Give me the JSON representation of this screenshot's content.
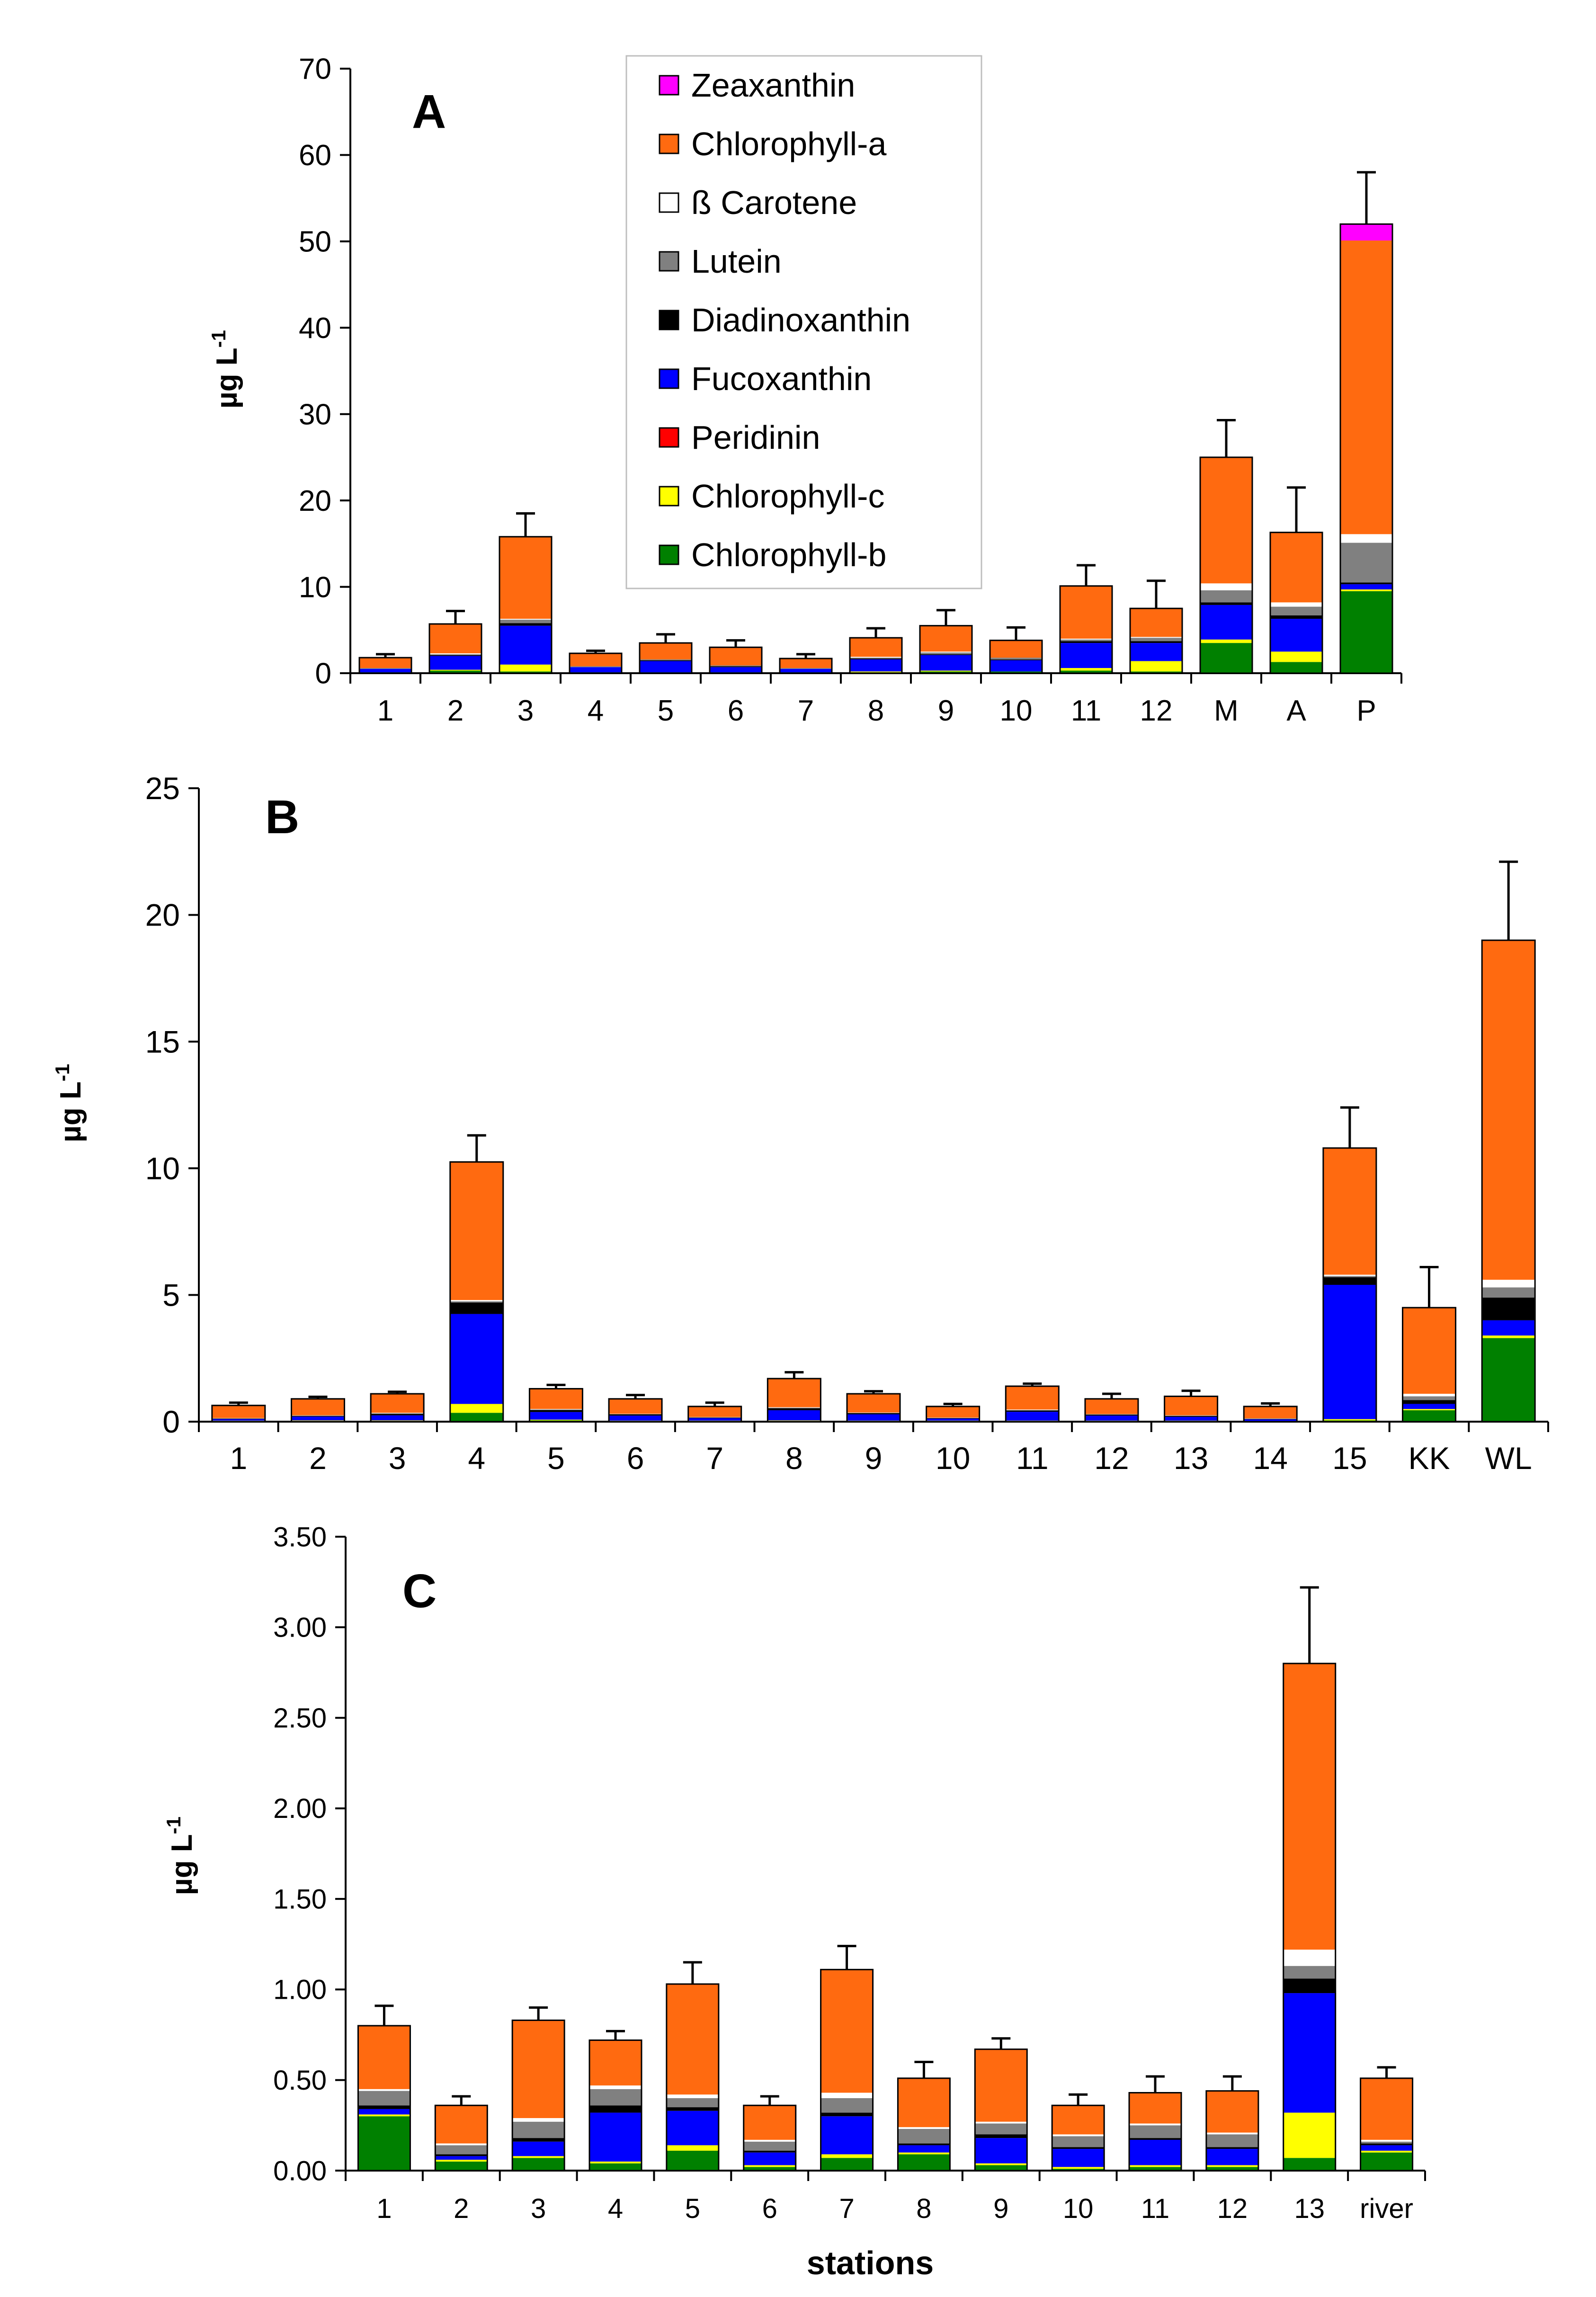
{
  "legend": [
    {
      "key": "zea",
      "name": "Zeaxanthin",
      "color": "#ff00ff"
    },
    {
      "key": "chla",
      "name": "Chlorophyll-a",
      "color": "#ff6a10"
    },
    {
      "key": "bcar",
      "name": "ß Carotene",
      "color": "#ffffff"
    },
    {
      "key": "lut",
      "name": "Lutein",
      "color": "#808080"
    },
    {
      "key": "dia",
      "name": "Diadinoxanthin",
      "color": "#000000"
    },
    {
      "key": "fuco",
      "name": "Fucoxanthin",
      "color": "#0000ff"
    },
    {
      "key": "peri",
      "name": "Peridinin",
      "color": "#ff0000"
    },
    {
      "key": "chlc",
      "name": "Chlorophyll-c",
      "color": "#ffff00"
    },
    {
      "key": "chlb",
      "name": "Chlorophyll-b",
      "color": "#008000"
    }
  ],
  "x_title": "stations",
  "chart_data": [
    {
      "type": "bar",
      "stacked": true,
      "panel_label": "A",
      "ylabel_main": "µg L",
      "ylabel_sup": "-1",
      "ylim": [
        0,
        70
      ],
      "yticks": [
        "0",
        "10",
        "20",
        "30",
        "40",
        "50",
        "60",
        "70"
      ],
      "categories": [
        "1",
        "2",
        "3",
        "4",
        "5",
        "6",
        "7",
        "8",
        "9",
        "10",
        "11",
        "12",
        "M",
        "A",
        "P"
      ],
      "series": [
        {
          "key": "chlb",
          "name": "Chlorophyll-b",
          "values": [
            0.1,
            0.3,
            0.2,
            0.1,
            0.1,
            0.1,
            0.1,
            0.1,
            0.2,
            0.2,
            0.3,
            0.2,
            3.5,
            1.3,
            9.5
          ]
        },
        {
          "key": "chlc",
          "name": "Chlorophyll-c",
          "values": [
            0,
            0.1,
            0.8,
            0,
            0,
            0,
            0,
            0.1,
            0.1,
            0,
            0.3,
            1.2,
            0.4,
            1.2,
            0.2
          ]
        },
        {
          "key": "peri",
          "name": "Peridinin",
          "values": [
            0,
            0,
            0,
            0,
            0,
            0,
            0,
            0,
            0,
            0,
            0,
            0,
            0,
            0,
            0
          ]
        },
        {
          "key": "fuco",
          "name": "Fucoxanthin",
          "values": [
            0.4,
            1.6,
            4.5,
            0.6,
            1.3,
            0.6,
            0.4,
            1.4,
            1.8,
            1.3,
            2.9,
            2.1,
            4.0,
            3.8,
            0.6
          ]
        },
        {
          "key": "dia",
          "name": "Diadinoxanthin",
          "values": [
            0,
            0.1,
            0.3,
            0,
            0.1,
            0.1,
            0,
            0.1,
            0.1,
            0.1,
            0.2,
            0.2,
            0.3,
            0.4,
            0.2
          ]
        },
        {
          "key": "lut",
          "name": "Lutein",
          "values": [
            0.1,
            0.1,
            0.4,
            0.1,
            0.1,
            0.1,
            0.1,
            0.1,
            0.2,
            0.2,
            0.2,
            0.4,
            1.4,
            1.0,
            4.6
          ]
        },
        {
          "key": "bcar",
          "name": "ß Carotene",
          "values": [
            0,
            0.1,
            0.1,
            0,
            0,
            0,
            0,
            0.1,
            0.1,
            0,
            0.1,
            0.1,
            0.8,
            0.5,
            1.0
          ]
        },
        {
          "key": "chla",
          "name": "Chlorophyll-a",
          "values": [
            1.2,
            3.4,
            9.5,
            1.5,
            1.9,
            2.1,
            1.1,
            2.2,
            3.0,
            2.0,
            6.1,
            3.3,
            14.6,
            8.1,
            34.0
          ]
        },
        {
          "key": "zea",
          "name": "Zeaxanthin",
          "values": [
            0,
            0,
            0,
            0,
            0,
            0,
            0,
            0,
            0,
            0,
            0,
            0,
            0,
            0,
            1.9
          ]
        }
      ],
      "error_tops": [
        2.2,
        7.2,
        18.5,
        2.6,
        4.5,
        3.8,
        2.2,
        5.2,
        7.3,
        5.3,
        12.5,
        10.7,
        29.3,
        21.5,
        58.0
      ]
    },
    {
      "type": "bar",
      "stacked": true,
      "panel_label": "B",
      "ylabel_main": "µg L",
      "ylabel_sup": "-1",
      "ylim": [
        0,
        25
      ],
      "yticks": [
        "0",
        "5",
        "10",
        "15",
        "20",
        "25"
      ],
      "categories": [
        "1",
        "2",
        "3",
        "4",
        "5",
        "6",
        "7",
        "8",
        "9",
        "10",
        "11",
        "12",
        "13",
        "14",
        "15",
        "KK",
        "WL"
      ],
      "series": [
        {
          "key": "chlb",
          "name": "Chlorophyll-b",
          "values": [
            0.02,
            0.02,
            0.02,
            0.35,
            0.05,
            0.02,
            0.02,
            0.02,
            0.02,
            0.02,
            0.02,
            0.02,
            0.02,
            0.02,
            0.05,
            0.45,
            3.3
          ]
        },
        {
          "key": "chlc",
          "name": "Chlorophyll-c",
          "values": [
            0.02,
            0.03,
            0.03,
            0.35,
            0.03,
            0.02,
            0.02,
            0.03,
            0.02,
            0.02,
            0.02,
            0.02,
            0.02,
            0.01,
            0.05,
            0.05,
            0.1
          ]
        },
        {
          "key": "peri",
          "name": "Peridinin",
          "values": [
            0,
            0,
            0,
            0,
            0,
            0,
            0,
            0,
            0,
            0,
            0,
            0,
            0,
            0,
            0,
            0,
            0
          ]
        },
        {
          "key": "fuco",
          "name": "Fucoxanthin",
          "values": [
            0.06,
            0.15,
            0.2,
            3.55,
            0.3,
            0.2,
            0.1,
            0.4,
            0.25,
            0.08,
            0.35,
            0.2,
            0.15,
            0.06,
            5.3,
            0.2,
            0.6
          ]
        },
        {
          "key": "dia",
          "name": "Diadinoxanthin",
          "values": [
            0.02,
            0.03,
            0.06,
            0.45,
            0.08,
            0.05,
            0.02,
            0.08,
            0.05,
            0.02,
            0.05,
            0.04,
            0.04,
            0.02,
            0.3,
            0.15,
            0.9
          ]
        },
        {
          "key": "lut",
          "name": "Lutein",
          "values": [
            0.01,
            0.01,
            0.02,
            0.05,
            0.02,
            0.01,
            0.01,
            0.02,
            0.01,
            0.01,
            0.02,
            0.01,
            0.01,
            0.01,
            0.05,
            0.15,
            0.4
          ]
        },
        {
          "key": "bcar",
          "name": "ß Carotene",
          "values": [
            0.01,
            0.01,
            0.02,
            0.05,
            0.02,
            0.01,
            0.01,
            0.02,
            0.01,
            0.01,
            0.02,
            0.01,
            0.01,
            0.01,
            0.05,
            0.1,
            0.3
          ]
        },
        {
          "key": "chla",
          "name": "Chlorophyll-a",
          "values": [
            0.5,
            0.65,
            0.75,
            5.45,
            0.8,
            0.59,
            0.42,
            1.13,
            0.74,
            0.44,
            0.92,
            0.6,
            0.75,
            0.47,
            5.0,
            3.4,
            13.4
          ]
        },
        {
          "key": "zea",
          "name": "Zeaxanthin",
          "values": [
            0,
            0,
            0,
            0,
            0,
            0,
            0,
            0,
            0,
            0,
            0,
            0,
            0,
            0,
            0,
            0,
            0
          ]
        }
      ],
      "error_tops": [
        0.75,
        0.98,
        1.18,
        11.3,
        1.45,
        1.05,
        0.75,
        1.95,
        1.2,
        0.7,
        1.5,
        1.1,
        1.22,
        0.72,
        12.4,
        6.1,
        22.1
      ]
    },
    {
      "type": "bar",
      "stacked": true,
      "panel_label": "C",
      "ylabel_main": "µg L",
      "ylabel_sup": "-1",
      "ylim": [
        0,
        3.5
      ],
      "yticks": [
        "0.00",
        "0.50",
        "1.00",
        "1.50",
        "2.00",
        "2.50",
        "3.00",
        "3.50"
      ],
      "categories": [
        "1",
        "2",
        "3",
        "4",
        "5",
        "6",
        "7",
        "8",
        "9",
        "10",
        "11",
        "12",
        "13",
        "river"
      ],
      "series": [
        {
          "key": "chlb",
          "name": "Chlorophyll-b",
          "values": [
            0.3,
            0.05,
            0.07,
            0.04,
            0.11,
            0.02,
            0.07,
            0.09,
            0.03,
            0.01,
            0.02,
            0.02,
            0.07,
            0.1
          ]
        },
        {
          "key": "chlc",
          "name": "Chlorophyll-c",
          "values": [
            0.01,
            0.01,
            0.01,
            0.01,
            0.03,
            0.01,
            0.02,
            0.01,
            0.01,
            0.01,
            0.01,
            0.01,
            0.25,
            0.01
          ]
        },
        {
          "key": "peri",
          "name": "Peridinin",
          "values": [
            0,
            0,
            0,
            0,
            0,
            0,
            0,
            0,
            0,
            0,
            0,
            0,
            0,
            0
          ]
        },
        {
          "key": "fuco",
          "name": "Fucoxanthin",
          "values": [
            0.03,
            0.02,
            0.08,
            0.27,
            0.19,
            0.07,
            0.21,
            0.04,
            0.14,
            0.1,
            0.14,
            0.09,
            0.66,
            0.03
          ]
        },
        {
          "key": "dia",
          "name": "Diadinoxanthin",
          "values": [
            0.02,
            0.01,
            0.02,
            0.04,
            0.02,
            0.01,
            0.02,
            0.01,
            0.02,
            0.01,
            0.01,
            0.01,
            0.08,
            0.01
          ]
        },
        {
          "key": "lut",
          "name": "Lutein",
          "values": [
            0.08,
            0.05,
            0.09,
            0.09,
            0.05,
            0.05,
            0.08,
            0.08,
            0.06,
            0.06,
            0.07,
            0.07,
            0.07,
            0.01
          ]
        },
        {
          "key": "bcar",
          "name": "ß Carotene",
          "values": [
            0.01,
            0.01,
            0.02,
            0.02,
            0.02,
            0.01,
            0.03,
            0.01,
            0.01,
            0.01,
            0.01,
            0.01,
            0.09,
            0.01
          ]
        },
        {
          "key": "chla",
          "name": "Chlorophyll-a",
          "values": [
            0.35,
            0.21,
            0.54,
            0.25,
            0.61,
            0.19,
            0.68,
            0.27,
            0.4,
            0.16,
            0.17,
            0.23,
            1.58,
            0.34
          ]
        },
        {
          "key": "zea",
          "name": "Zeaxanthin",
          "values": [
            0,
            0,
            0,
            0,
            0,
            0,
            0,
            0,
            0,
            0,
            0,
            0,
            0,
            0
          ]
        }
      ],
      "error_tops": [
        0.91,
        0.41,
        0.9,
        0.77,
        1.15,
        0.41,
        1.24,
        0.6,
        0.73,
        0.42,
        0.52,
        0.52,
        3.22,
        0.57
      ]
    }
  ]
}
